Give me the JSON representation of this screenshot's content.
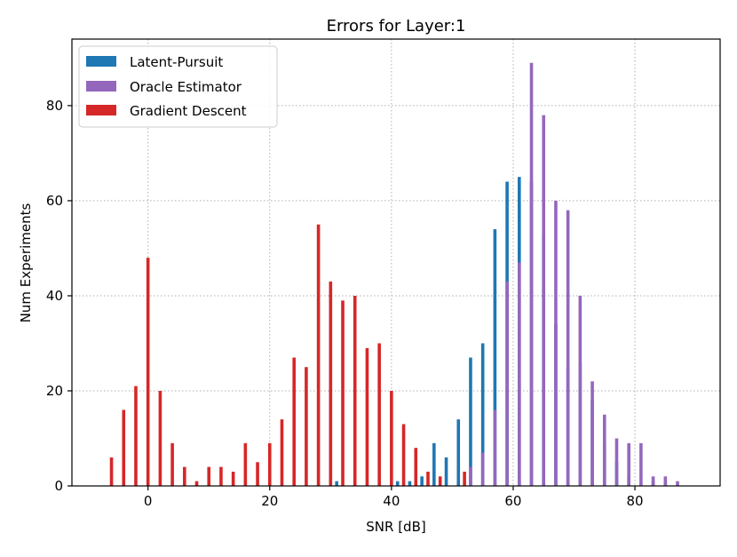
{
  "chart_data": {
    "type": "bar",
    "title": "Errors for Layer:1",
    "xlabel": "SNR [dB]",
    "ylabel": "Num Experiments",
    "xlim": [
      -12.5,
      94
    ],
    "ylim": [
      0,
      94
    ],
    "xticks": [
      0,
      20,
      40,
      60,
      80
    ],
    "yticks": [
      0,
      20,
      40,
      60,
      80
    ],
    "grid": true,
    "legend_position": "top-left",
    "series": [
      {
        "name": "Latent-Pursuit",
        "color": "#1f77b4",
        "x": [
          31,
          41,
          43,
          45,
          47,
          49,
          51,
          53,
          55,
          57,
          59,
          61,
          63,
          65,
          67,
          69,
          71,
          73,
          75,
          77,
          79,
          81,
          83,
          85,
          87
        ],
        "values": [
          1,
          1,
          1,
          2,
          9,
          6,
          14,
          27,
          30,
          54,
          64,
          65,
          64,
          53,
          34,
          25,
          26,
          18,
          9,
          5,
          2,
          0,
          1,
          1,
          0
        ]
      },
      {
        "name": "Oracle Estimator",
        "color": "#9467bd",
        "x": [
          53,
          55,
          57,
          59,
          61,
          63,
          65,
          67,
          69,
          71,
          73,
          75,
          77,
          79,
          81,
          83,
          85,
          87
        ],
        "values": [
          4,
          7,
          16,
          43,
          47,
          89,
          78,
          60,
          58,
          40,
          22,
          15,
          10,
          9,
          9,
          2,
          2,
          1
        ]
      },
      {
        "name": "Gradient Descent",
        "color": "#d62728",
        "x": [
          -6,
          -4,
          -2,
          0,
          2,
          4,
          6,
          8,
          10,
          12,
          14,
          16,
          18,
          20,
          22,
          24,
          26,
          28,
          30,
          32,
          34,
          36,
          38,
          40,
          42,
          44,
          46,
          48,
          52
        ],
        "values": [
          6,
          16,
          21,
          48,
          20,
          9,
          4,
          1,
          4,
          4,
          3,
          9,
          5,
          9,
          14,
          27,
          25,
          55,
          43,
          39,
          40,
          29,
          30,
          20,
          13,
          8,
          3,
          2,
          3
        ]
      }
    ]
  }
}
